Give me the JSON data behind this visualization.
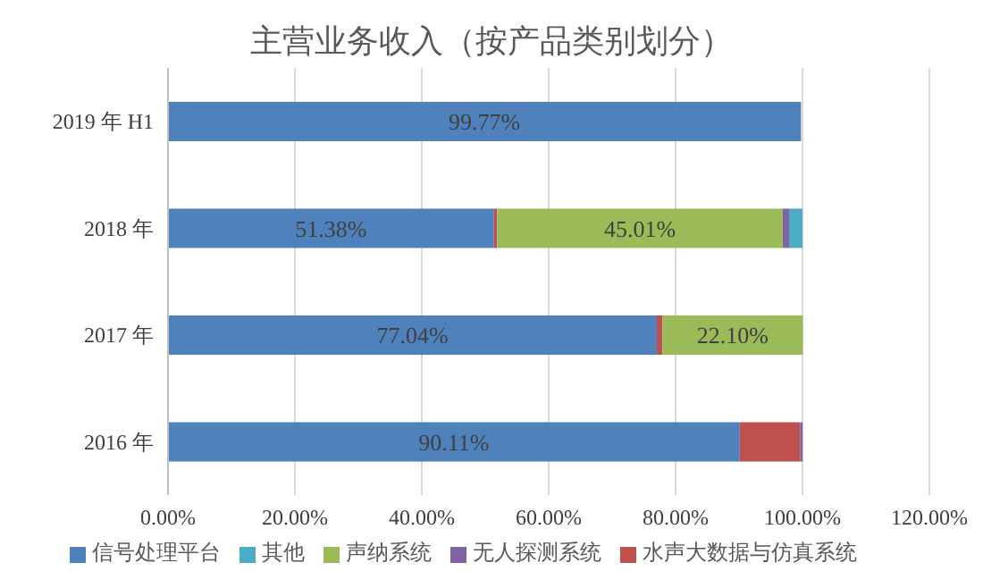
{
  "chart_data": {
    "type": "bar",
    "orientation": "horizontal",
    "stacked": true,
    "title": "主营业务收入（按产品类别划分）",
    "categories": [
      "2019 年 H1",
      "2018 年",
      "2017 年",
      "2016 年"
    ],
    "series": [
      {
        "name": "信号处理平台",
        "color": "#4f81bd",
        "values": [
          99.77,
          51.38,
          77.04,
          90.11
        ],
        "value_labels": [
          "99.77%",
          "51.38%",
          "77.04%",
          "90.11%"
        ]
      },
      {
        "name": "水声大数据与仿真系统",
        "color": "#c0504d",
        "values": [
          null,
          0.5,
          0.9,
          9.5
        ]
      },
      {
        "name": "声纳系统",
        "color": "#9bbb59",
        "values": [
          null,
          45.01,
          22.1,
          null
        ],
        "value_labels": [
          null,
          "45.01%",
          "22.10%",
          null
        ]
      },
      {
        "name": "无人探测系统",
        "color": "#8064a2",
        "values": [
          null,
          1.0,
          null,
          0.4
        ]
      },
      {
        "name": "其他",
        "color": "#4bacc6",
        "values": [
          null,
          2.1,
          null,
          null
        ]
      }
    ],
    "xlim": [
      0,
      120
    ],
    "xticks": [
      {
        "value": 0,
        "label": "0.00%"
      },
      {
        "value": 20,
        "label": "20.00%"
      },
      {
        "value": 40,
        "label": "40.00%"
      },
      {
        "value": 60,
        "label": "60.00%"
      },
      {
        "value": 80,
        "label": "80.00%"
      },
      {
        "value": 100,
        "label": "100.00%"
      },
      {
        "value": 120,
        "label": "120.00%"
      }
    ],
    "grid": "x",
    "legend": "bottom"
  }
}
